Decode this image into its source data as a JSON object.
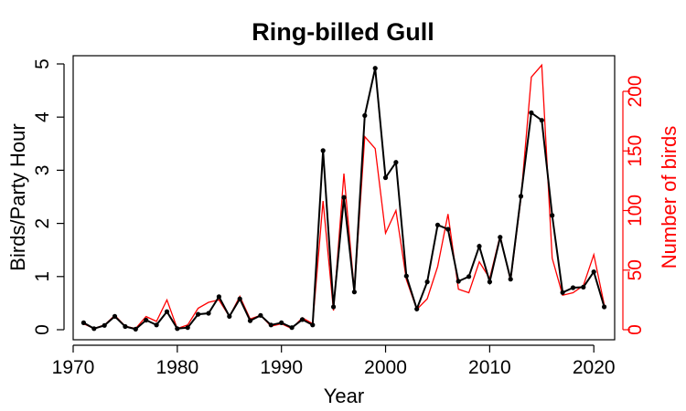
{
  "chart_data": {
    "type": "line",
    "title": "Ring-billed Gull",
    "xlabel": "Year",
    "ylabel_left": "Birds/Party Hour",
    "ylabel_right": "Number of birds",
    "xlim": [
      1970,
      2022
    ],
    "ylim_left": [
      0,
      5
    ],
    "ylim_right": [
      0,
      223
    ],
    "x_ticks": [
      1970,
      1980,
      1990,
      2000,
      2010,
      2020
    ],
    "y_ticks_left": [
      0,
      1,
      2,
      3,
      4,
      5
    ],
    "y_ticks_right": [
      0,
      50,
      100,
      150,
      200
    ],
    "colors": {
      "left": "#000000",
      "right": "#ff0000"
    },
    "grid": false,
    "series": [
      {
        "axis": "left",
        "values": [
          [
            1971,
            0.13
          ],
          [
            1972,
            0.02
          ],
          [
            1973,
            0.08
          ],
          [
            1974,
            0.25
          ],
          [
            1975,
            0.06
          ],
          [
            1976,
            0.01
          ],
          [
            1977,
            0.18
          ],
          [
            1978,
            0.09
          ],
          [
            1979,
            0.34
          ],
          [
            1980,
            0.02
          ],
          [
            1981,
            0.04
          ],
          [
            1982,
            0.29
          ],
          [
            1983,
            0.31
          ],
          [
            1984,
            0.62
          ],
          [
            1985,
            0.25
          ],
          [
            1986,
            0.58
          ],
          [
            1987,
            0.17
          ],
          [
            1988,
            0.27
          ],
          [
            1989,
            0.09
          ],
          [
            1990,
            0.13
          ],
          [
            1991,
            0.04
          ],
          [
            1992,
            0.19
          ],
          [
            1993,
            0.09
          ],
          [
            1994,
            3.37
          ],
          [
            1995,
            0.43
          ],
          [
            1996,
            2.49
          ],
          [
            1997,
            0.71
          ],
          [
            1998,
            4.03
          ],
          [
            1999,
            4.92
          ],
          [
            2000,
            2.86
          ],
          [
            2001,
            3.15
          ],
          [
            2002,
            1.01
          ],
          [
            2003,
            0.39
          ],
          [
            2004,
            0.9
          ],
          [
            2005,
            1.97
          ],
          [
            2006,
            1.89
          ],
          [
            2007,
            0.91
          ],
          [
            2008,
            1.0
          ],
          [
            2009,
            1.57
          ],
          [
            2010,
            0.9
          ],
          [
            2011,
            1.74
          ],
          [
            2012,
            0.95
          ],
          [
            2013,
            2.51
          ],
          [
            2014,
            4.08
          ],
          [
            2015,
            3.94
          ],
          [
            2016,
            2.15
          ],
          [
            2017,
            0.7
          ],
          [
            2018,
            0.79
          ],
          [
            2019,
            0.8
          ],
          [
            2020,
            1.09
          ],
          [
            2021,
            0.43
          ]
        ]
      },
      {
        "axis": "right",
        "values": [
          [
            1971,
            5
          ],
          [
            1972,
            1
          ],
          [
            1973,
            4
          ],
          [
            1974,
            12
          ],
          [
            1975,
            3
          ],
          [
            1976,
            1
          ],
          [
            1977,
            11
          ],
          [
            1978,
            7
          ],
          [
            1979,
            25
          ],
          [
            1980,
            1
          ],
          [
            1981,
            4
          ],
          [
            1982,
            18
          ],
          [
            1983,
            23
          ],
          [
            1984,
            25
          ],
          [
            1985,
            11
          ],
          [
            1986,
            28
          ],
          [
            1987,
            9
          ],
          [
            1988,
            12
          ],
          [
            1989,
            3
          ],
          [
            1990,
            5
          ],
          [
            1991,
            1
          ],
          [
            1992,
            10
          ],
          [
            1993,
            5
          ],
          [
            1994,
            108
          ],
          [
            1995,
            16
          ],
          [
            1996,
            131
          ],
          [
            1997,
            32
          ],
          [
            1998,
            162
          ],
          [
            1999,
            152
          ],
          [
            2000,
            81
          ],
          [
            2001,
            100
          ],
          [
            2002,
            42
          ],
          [
            2003,
            17
          ],
          [
            2004,
            26
          ],
          [
            2005,
            53
          ],
          [
            2006,
            97
          ],
          [
            2007,
            34
          ],
          [
            2008,
            31
          ],
          [
            2009,
            57
          ],
          [
            2010,
            43
          ],
          [
            2011,
            79
          ],
          [
            2012,
            41
          ],
          [
            2013,
            110
          ],
          [
            2014,
            212
          ],
          [
            2015,
            222
          ],
          [
            2016,
            60
          ],
          [
            2017,
            29
          ],
          [
            2018,
            31
          ],
          [
            2019,
            37
          ],
          [
            2020,
            63
          ],
          [
            2021,
            21
          ]
        ]
      }
    ]
  }
}
